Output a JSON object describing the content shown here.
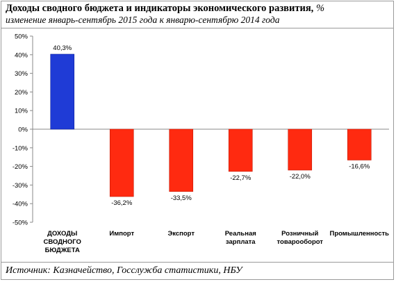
{
  "header": {
    "title": "Доходы сводного бюджета и индикаторы экономического  развития,",
    "title_unit": "%",
    "subtitle": "изменение январь-сентябрь 2015 года к январю-сентябрю 2014 года"
  },
  "footer": {
    "source": "Источник: Казначейство, Госслужба статистики, НБУ"
  },
  "chart_data": {
    "type": "bar",
    "title": "Доходы сводного бюджета и индикаторы экономического  развития, %",
    "xlabel": "",
    "ylabel": "",
    "ylim": [
      -50,
      50
    ],
    "yticks": [
      50,
      40,
      30,
      20,
      10,
      0,
      -10,
      -20,
      -30,
      -40,
      -50
    ],
    "ytick_labels": [
      "50%",
      "40%",
      "30%",
      "20%",
      "10%",
      "0%",
      "-10%",
      "-20%",
      "-30%",
      "-40%",
      "-50%"
    ],
    "grid": false,
    "legend": "none",
    "categories": [
      [
        "ДОХОДЫ",
        "СВОДНОГО",
        "БЮДЖЕТА"
      ],
      [
        "Импорт"
      ],
      [
        "Экспорт"
      ],
      [
        "Реальная",
        "зарплата"
      ],
      [
        "Розничный",
        "товарооборот"
      ],
      [
        "Промышленность"
      ]
    ],
    "values": [
      40.3,
      -36.2,
      -33.5,
      -22.7,
      -22.0,
      -16.6
    ],
    "value_labels": [
      "40,3%",
      "-36,2%",
      "-33,5%",
      "-22,7%",
      "-22,0%",
      "-16,6%"
    ],
    "colors": {
      "positive": "#1f3bd6",
      "negative": "#ff2a10",
      "positive_edge": "#0d1f9a",
      "negative_edge": "#c41a05",
      "axis": "#888888",
      "text": "#000000"
    }
  }
}
